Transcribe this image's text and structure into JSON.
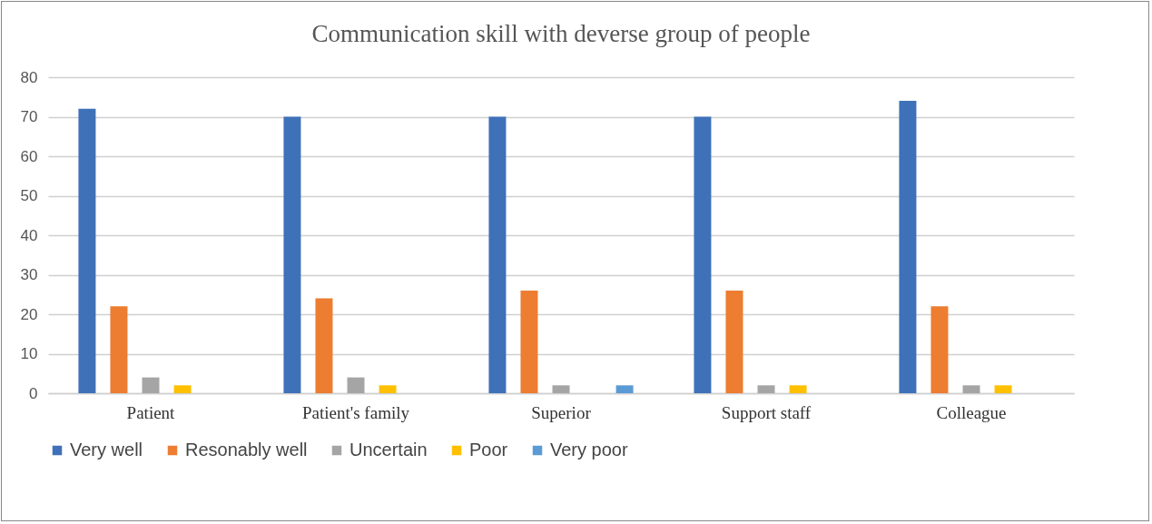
{
  "chart_data": {
    "type": "bar",
    "title": "Communication skill  with deverse group of people",
    "categories": [
      "Patient",
      "Patient's family",
      "Superior",
      "Support staff",
      "Colleague"
    ],
    "series": [
      {
        "name": "Very well",
        "color": "#3f71b9",
        "values": [
          72,
          70,
          70,
          70,
          74
        ]
      },
      {
        "name": "Resonably well",
        "color": "#ed7d31",
        "values": [
          22,
          24,
          26,
          26,
          22
        ]
      },
      {
        "name": "Uncertain",
        "color": "#a5a5a5",
        "values": [
          4,
          4,
          2,
          2,
          2
        ]
      },
      {
        "name": "Poor",
        "color": "#ffc000",
        "values": [
          2,
          2,
          0,
          2,
          2
        ]
      },
      {
        "name": "Very poor",
        "color": "#5b9bd5",
        "values": [
          0,
          0,
          2,
          0,
          0
        ]
      }
    ],
    "ylim": [
      0,
      80
    ],
    "yticks": [
      0,
      10,
      20,
      30,
      40,
      50,
      60,
      70,
      80
    ],
    "grid": "y",
    "legend": "bottom"
  }
}
